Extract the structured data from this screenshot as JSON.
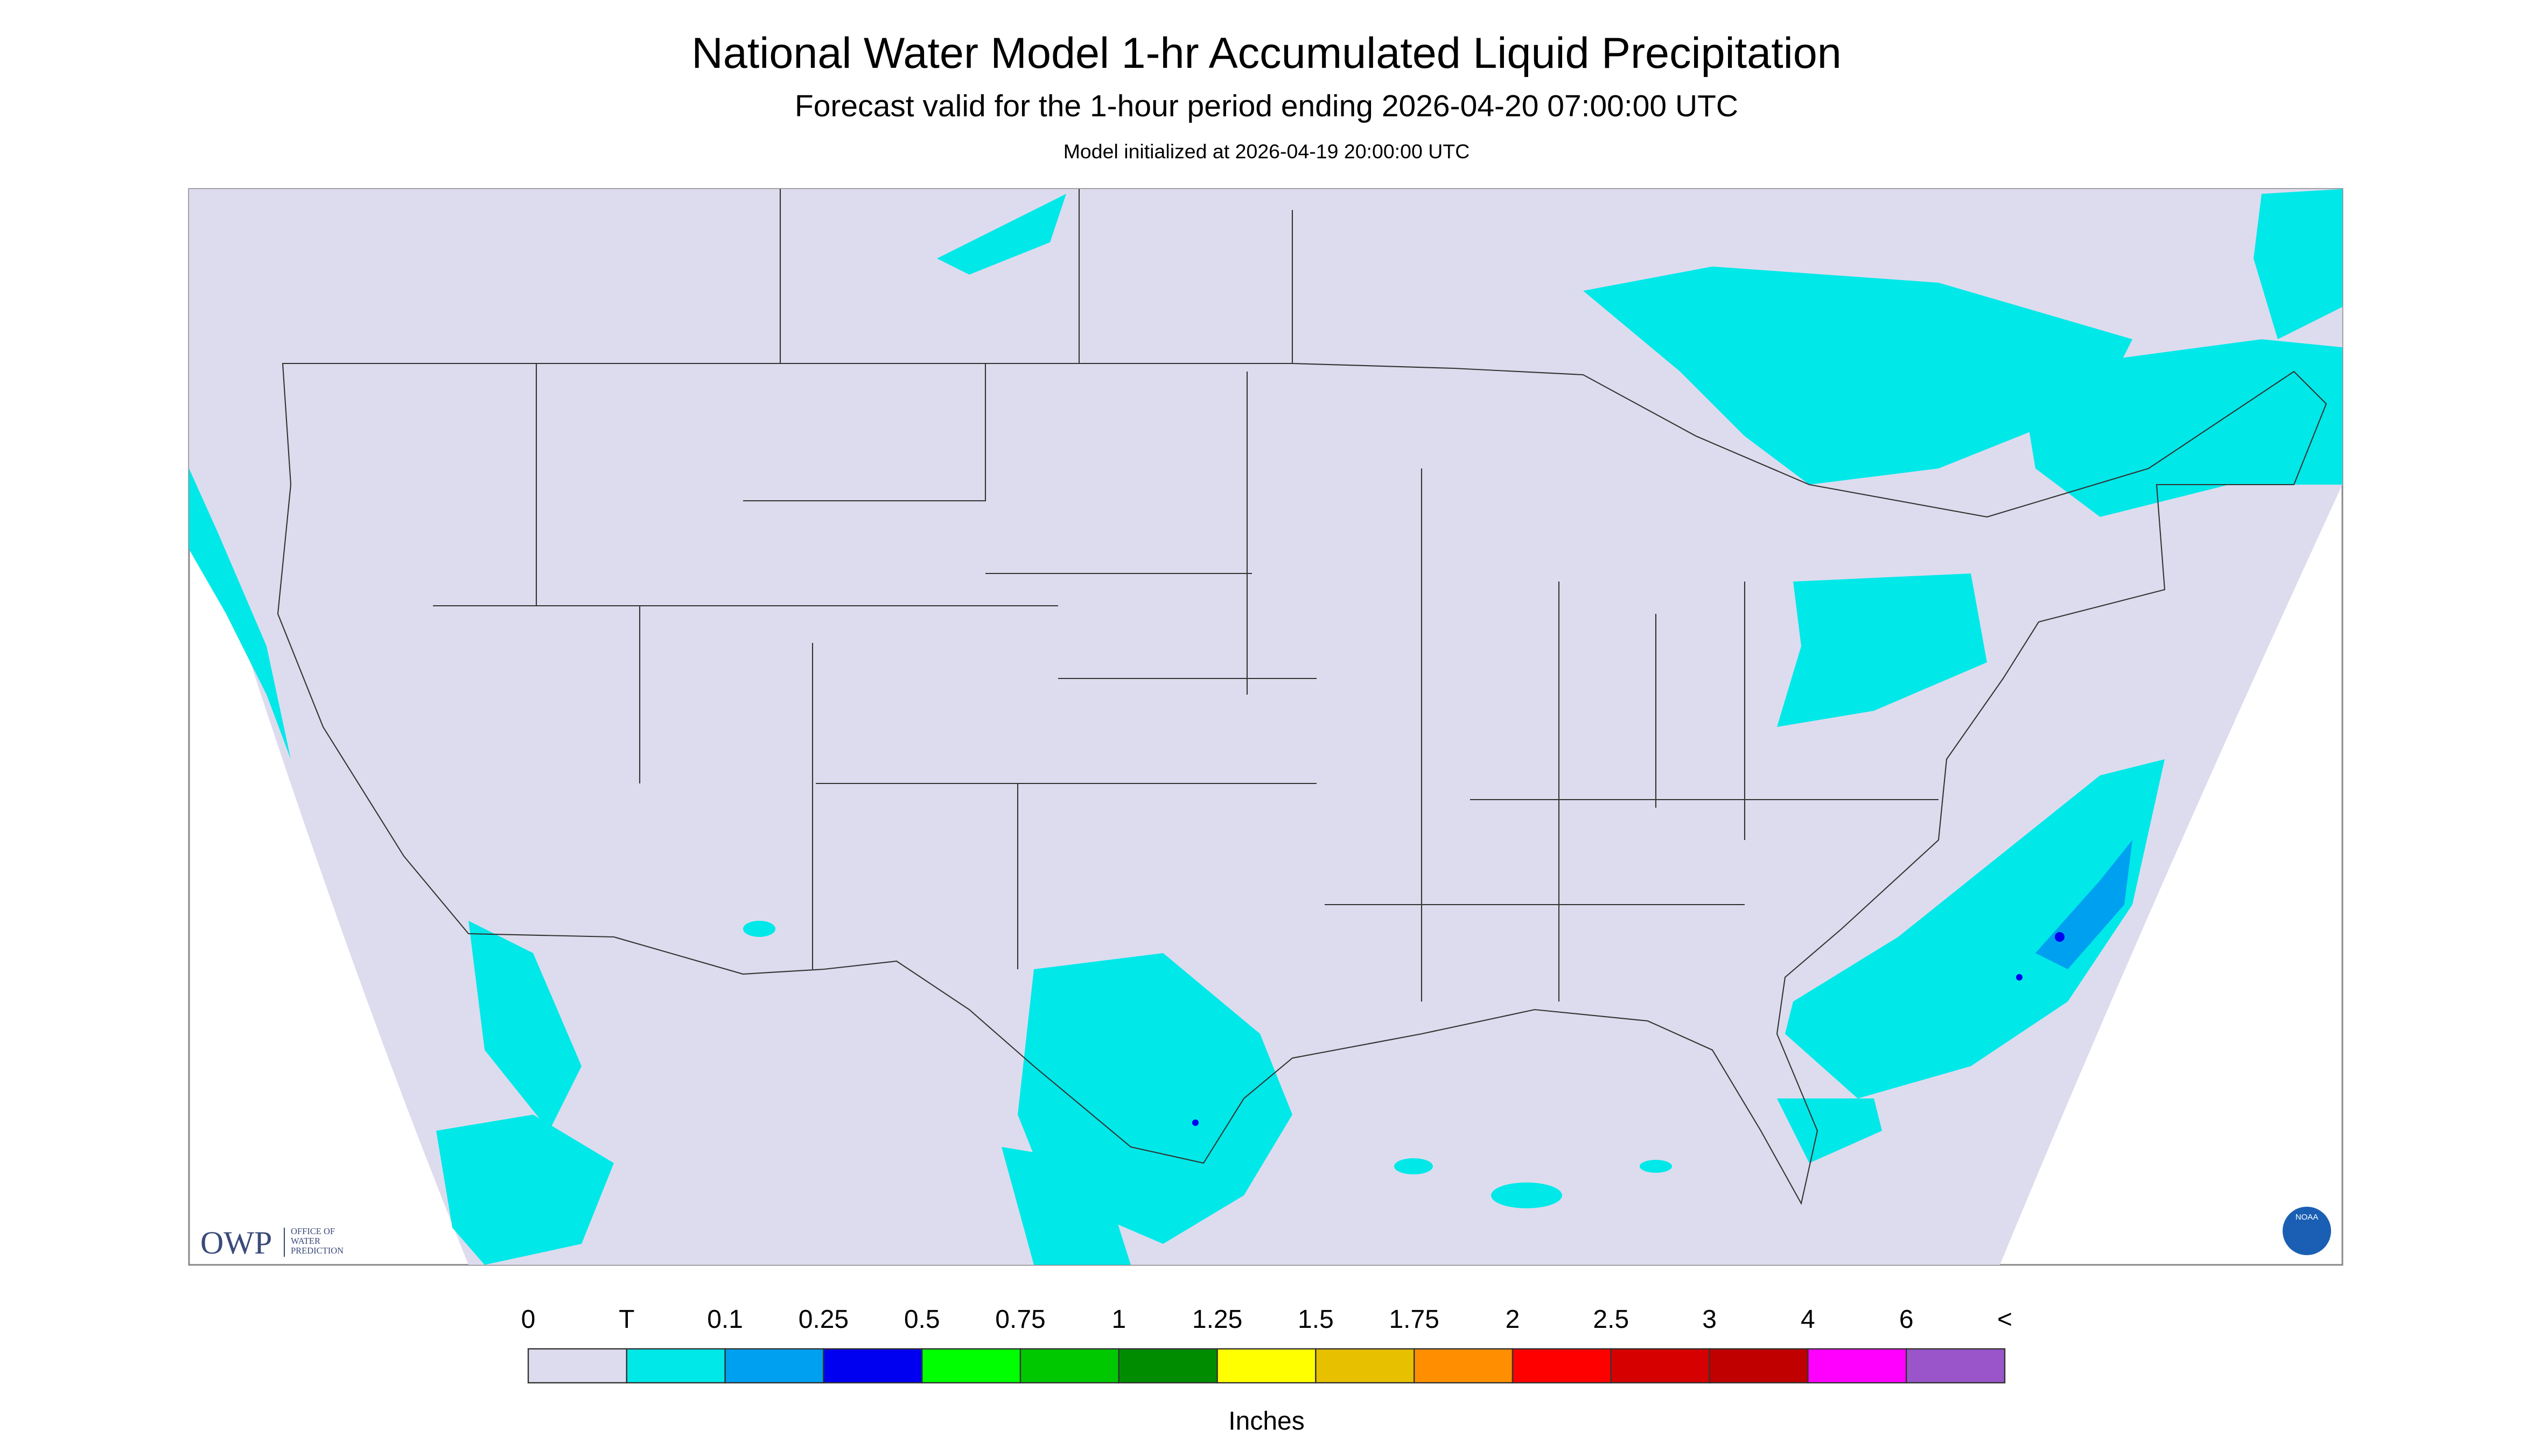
{
  "header": {
    "title": "National Water Model 1-hr Accumulated Liquid Precipitation",
    "subtitle": "Forecast valid for the 1-hour period ending 2026-04-20 07:00:00 UTC",
    "initialized": "Model initialized at 2026-04-19 20:00:00 UTC"
  },
  "legend": {
    "labels": [
      "0",
      "T",
      "0.1",
      "0.25",
      "0.5",
      "0.75",
      "1",
      "1.25",
      "1.5",
      "1.75",
      "2",
      "2.5",
      "3",
      "4",
      "6",
      "<"
    ],
    "colors": [
      "#dcdcee",
      "#00e8e8",
      "#00a0f0",
      "#0000f0",
      "#00ff00",
      "#00c800",
      "#008c00",
      "#ffff00",
      "#e7c000",
      "#ff8f00",
      "#ff0000",
      "#d60000",
      "#c00000",
      "#ff00ff",
      "#9955c9"
    ],
    "unit": "Inches"
  },
  "logos": {
    "owp": "OWP",
    "owp_name": [
      "OFFICE OF",
      "WATER",
      "PREDICTION"
    ],
    "noaa": "NOAA"
  }
}
